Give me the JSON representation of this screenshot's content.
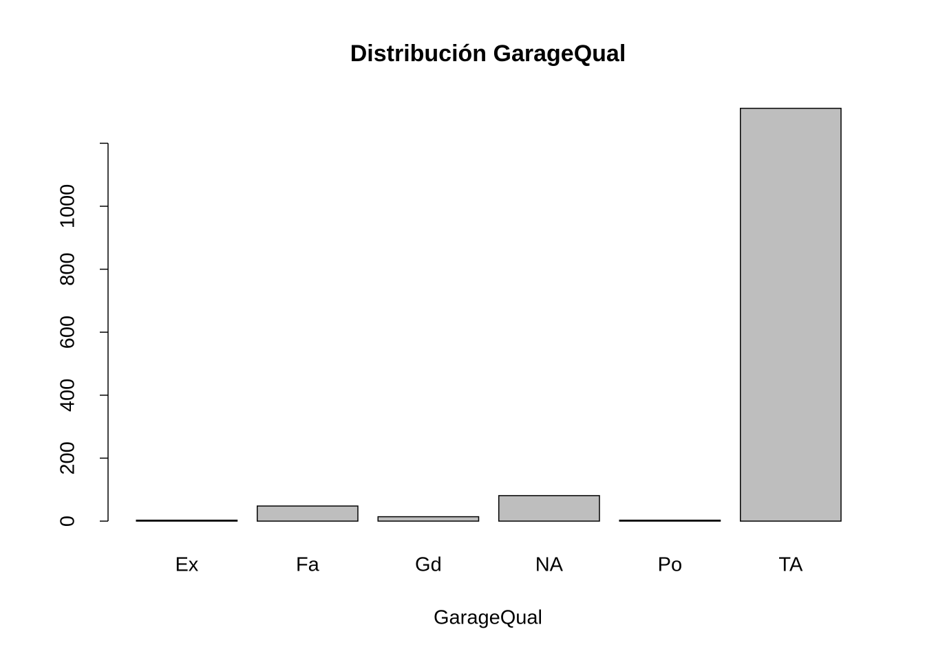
{
  "chart_data": {
    "type": "bar",
    "title": "Distribución GarageQual",
    "x_label": "GarageQual",
    "categories": [
      "Ex",
      "Fa",
      "Gd",
      "NA",
      "Po",
      "TA"
    ],
    "values": [
      3,
      48,
      14,
      81,
      3,
      1311
    ],
    "color": "#bebebe",
    "edge_color": "#000000",
    "ylim": [
      0,
      1400
    ],
    "yticks": [
      0,
      200,
      400,
      600,
      800,
      1000
    ],
    "yticks_unlabeled": [
      1200
    ],
    "grid": false
  }
}
